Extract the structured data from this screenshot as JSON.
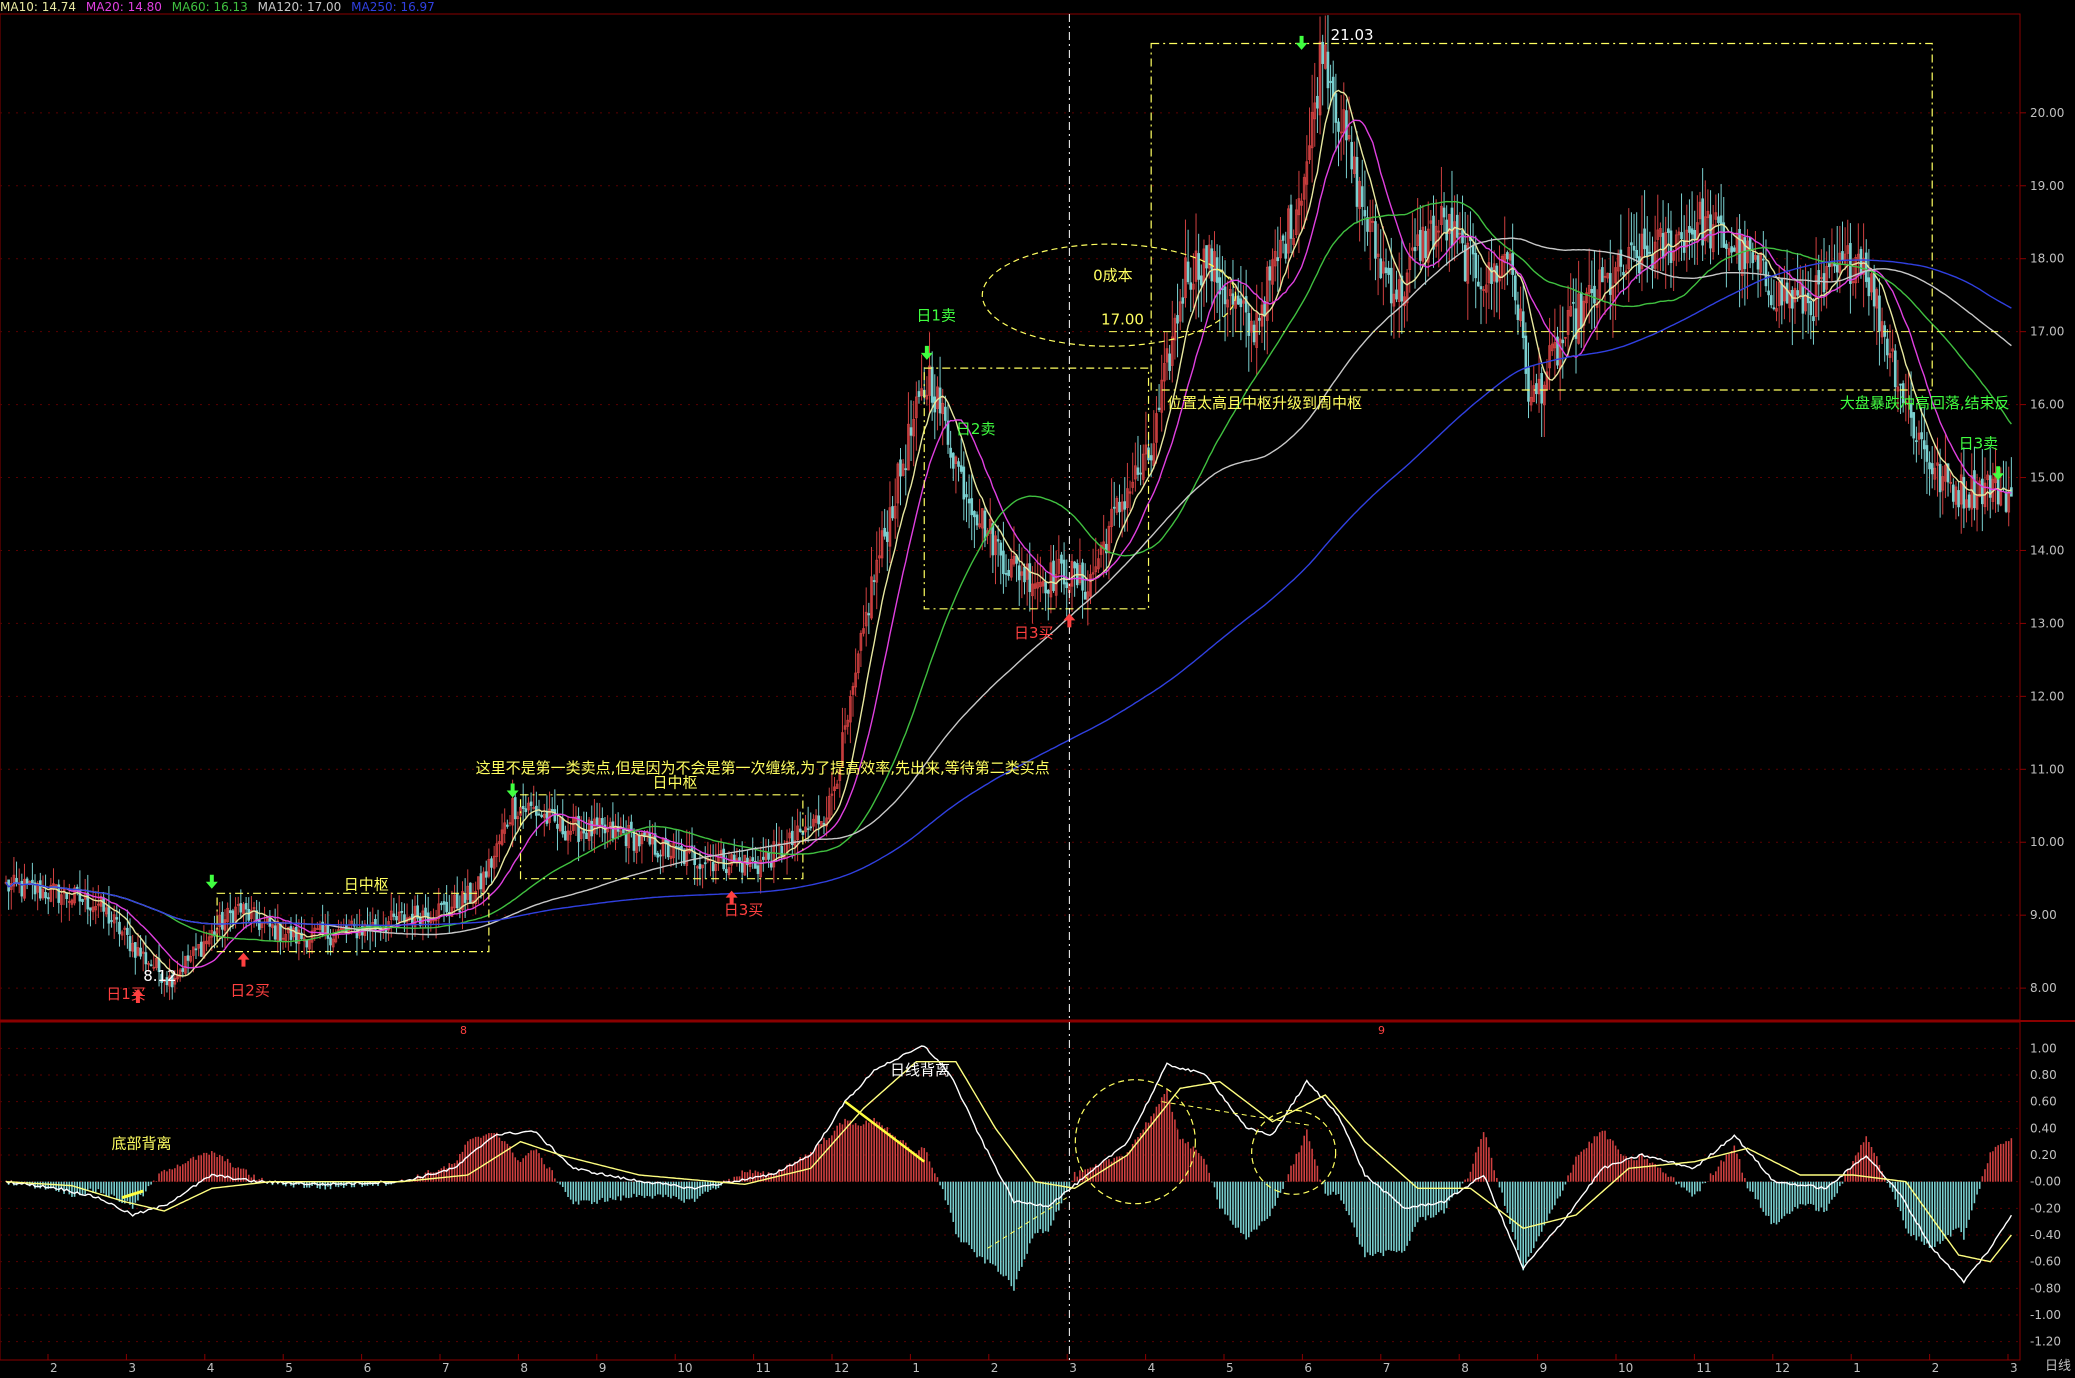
{
  "period_label": "日线",
  "colors": {
    "bg": "#000000",
    "frame": "#8a0000",
    "grid": "#5a0000",
    "axis_text": "#c0c0c0",
    "up": "#d04040",
    "down": "#7ad0d0",
    "ma5": "#ffffff",
    "ma10": "#e8e8a0",
    "ma20": "#e040e0",
    "ma60": "#40c040",
    "ma120": "#c8c8c8",
    "ma250": "#3040e0",
    "annotation_yellow": "#ffff60",
    "annotation_red": "#ff4040",
    "annotation_green": "#40ff40",
    "dif": "#ffffff",
    "dea": "#ffff80"
  },
  "ma_legend": [
    {
      "text": "MA10: 14.74",
      "color": "#e8e8a0"
    },
    {
      "text": "MA20: 14.80",
      "color": "#e040e0"
    },
    {
      "text": "MA60: 16.13",
      "color": "#40c040"
    },
    {
      "text": "MA120: 17.00",
      "color": "#c8c8c8"
    },
    {
      "text": "MA250: 16.97",
      "color": "#3040e0"
    }
  ],
  "chart_data": [
    {
      "type": "candlestick",
      "title": "",
      "ylim": [
        7.7,
        21.3
      ],
      "y_ticks": [
        8.0,
        9.0,
        10.0,
        11.0,
        12.0,
        13.0,
        14.0,
        15.0,
        16.0,
        17.0,
        18.0,
        19.0,
        20.0
      ],
      "x_month_labels": [
        "2",
        "3",
        "4",
        "5",
        "6",
        "7",
        "8",
        "9",
        "10",
        "11",
        "12",
        "1",
        "2",
        "3",
        "4",
        "5",
        "6",
        "7",
        "8",
        "9",
        "10",
        "11",
        "12",
        "1",
        "2",
        "3"
      ],
      "year_markers": [
        "8",
        "9"
      ],
      "price_path": [
        [
          0,
          9.4
        ],
        [
          20,
          9.3
        ],
        [
          35,
          9.15
        ],
        [
          50,
          8.5
        ],
        [
          62,
          8.12
        ],
        [
          72,
          8.5
        ],
        [
          82,
          8.9
        ],
        [
          88,
          9.1
        ],
        [
          98,
          8.85
        ],
        [
          110,
          8.7
        ],
        [
          125,
          8.75
        ],
        [
          140,
          8.85
        ],
        [
          155,
          9.0
        ],
        [
          168,
          9.1
        ],
        [
          178,
          9.3
        ],
        [
          185,
          9.8
        ],
        [
          192,
          10.5
        ],
        [
          200,
          10.45
        ],
        [
          210,
          10.2
        ],
        [
          225,
          10.15
        ],
        [
          235,
          10.1
        ],
        [
          245,
          9.95
        ],
        [
          258,
          9.8
        ],
        [
          270,
          9.75
        ],
        [
          285,
          9.7
        ],
        [
          298,
          10.0
        ],
        [
          305,
          10.2
        ],
        [
          312,
          10.5
        ],
        [
          320,
          11.8
        ],
        [
          328,
          13.5
        ],
        [
          335,
          14.5
        ],
        [
          342,
          15.5
        ],
        [
          350,
          16.4
        ],
        [
          356,
          15.7
        ],
        [
          362,
          15.0
        ],
        [
          370,
          14.4
        ],
        [
          380,
          13.8
        ],
        [
          392,
          13.6
        ],
        [
          402,
          13.7
        ],
        [
          410,
          13.5
        ],
        [
          418,
          14.3
        ],
        [
          426,
          14.9
        ],
        [
          434,
          15.3
        ],
        [
          440,
          16.5
        ],
        [
          447,
          17.8
        ],
        [
          455,
          18.0
        ],
        [
          463,
          17.5
        ],
        [
          472,
          17.0
        ],
        [
          480,
          17.8
        ],
        [
          488,
          18.6
        ],
        [
          494,
          19.5
        ],
        [
          499,
          21.03
        ],
        [
          505,
          20.0
        ],
        [
          512,
          19.0
        ],
        [
          520,
          18.0
        ],
        [
          528,
          17.5
        ],
        [
          536,
          18.2
        ],
        [
          545,
          18.5
        ],
        [
          553,
          18.0
        ],
        [
          562,
          17.7
        ],
        [
          570,
          18.1
        ],
        [
          578,
          16.0
        ],
        [
          586,
          16.6
        ],
        [
          595,
          17.2
        ],
        [
          605,
          17.6
        ],
        [
          618,
          18.0
        ],
        [
          630,
          18.2
        ],
        [
          642,
          18.5
        ],
        [
          650,
          18.3
        ],
        [
          660,
          18.0
        ],
        [
          672,
          17.5
        ],
        [
          684,
          17.4
        ],
        [
          694,
          17.8
        ],
        [
          703,
          18.1
        ],
        [
          712,
          17.0
        ],
        [
          722,
          15.8
        ],
        [
          732,
          15.0
        ],
        [
          742,
          14.8
        ],
        [
          752,
          14.9
        ],
        [
          760,
          14.74
        ]
      ],
      "big_moves": [
        [
          0.18,
          0.95
        ],
        [
          0.3,
          1.4
        ],
        [
          0.6,
          0.8
        ],
        [
          0.7,
          1.0
        ]
      ],
      "ma_lines": [
        {
          "name": "MA10",
          "color": "#e8e8a0",
          "lag": 5
        },
        {
          "name": "MA20",
          "color": "#e040e0",
          "lag": 10
        },
        {
          "name": "MA60",
          "color": "#40c040",
          "lag": 30
        },
        {
          "name": "MA120",
          "color": "#c8c8c8",
          "lag": 60
        },
        {
          "name": "MA250",
          "color": "#3040e0",
          "lag": 125
        }
      ],
      "annotations": [
        {
          "text": "日1买",
          "color": "#ff4040",
          "day": 38,
          "price": 7.85
        },
        {
          "text": "8.12",
          "color": "#ffffff",
          "day": 52,
          "price": 8.1
        },
        {
          "text": "日2买",
          "color": "#ff4040",
          "day": 85,
          "price": 7.9
        },
        {
          "text": "日中枢",
          "color": "#ffff60",
          "day": 128,
          "price": 9.35
        },
        {
          "text": "这里不是第一类卖点,但是因为不会是第一次缠绕,为了提高效率,先出来,等待第二类买点",
          "color": "#ffff60",
          "day": 178,
          "price": 10.95
        },
        {
          "text": "日中枢",
          "color": "#ffff60",
          "day": 245,
          "price": 10.75
        },
        {
          "text": "日3买",
          "color": "#ff4040",
          "day": 272,
          "price": 9.0
        },
        {
          "text": "日1卖",
          "color": "#40ff40",
          "day": 345,
          "price": 17.15
        },
        {
          "text": "日2卖",
          "color": "#40ff40",
          "day": 360,
          "price": 15.6
        },
        {
          "text": "日3买",
          "color": "#ff4040",
          "day": 382,
          "price": 12.8
        },
        {
          "text": "0成本",
          "color": "#ffff60",
          "day": 412,
          "price": 17.7
        },
        {
          "text": "17.00",
          "color": "#ffff60",
          "day": 415,
          "price": 17.1
        },
        {
          "text": "21.03",
          "color": "#ffffff",
          "day": 502,
          "price": 21.0
        },
        {
          "text": "位置太高且中枢升级到周中枢",
          "color": "#ffff60",
          "day": 440,
          "price": 15.95
        },
        {
          "text": "大盘暴跌冲高回落,结束反",
          "color": "#40ff40",
          "day": 695,
          "price": 15.95
        },
        {
          "text": "日3卖",
          "color": "#40ff40",
          "day": 740,
          "price": 15.4
        }
      ],
      "arrows": [
        {
          "kind": "up",
          "color": "#ff4040",
          "day": 50,
          "price": 7.85
        },
        {
          "kind": "up",
          "color": "#ff4040",
          "day": 90,
          "price": 8.35
        },
        {
          "kind": "down",
          "color": "#40ff40",
          "day": 78,
          "price": 9.5
        },
        {
          "kind": "down",
          "color": "#40ff40",
          "day": 192,
          "price": 10.75
        },
        {
          "kind": "up",
          "color": "#ff4040",
          "day": 275,
          "price": 9.2
        },
        {
          "kind": "down",
          "color": "#40ff40",
          "day": 349,
          "price": 16.75
        },
        {
          "kind": "up",
          "color": "#ff4040",
          "day": 403,
          "price": 13.0
        },
        {
          "kind": "down",
          "color": "#40ff40",
          "day": 491,
          "price": 21.0
        },
        {
          "kind": "down",
          "color": "#40ff40",
          "day": 755,
          "price": 15.1
        }
      ],
      "boxes": [
        {
          "d0": 80,
          "d1": 183,
          "p0": 8.5,
          "p1": 9.3
        },
        {
          "d0": 195,
          "d1": 302,
          "p0": 9.5,
          "p1": 10.65
        },
        {
          "d0": 348,
          "d1": 433,
          "p0": 13.2,
          "p1": 16.5
        },
        {
          "d0": 434,
          "d1": 730,
          "p0": 16.2,
          "p1": 20.95
        }
      ],
      "horizontal_dashed": [
        {
          "d0": 418,
          "d1": 755,
          "price": 17.0
        }
      ],
      "circle": {
        "day": 418,
        "price": 17.5,
        "r_days": 16,
        "r_price": 0.7
      },
      "vertical_dashed_day": 403
    },
    {
      "type": "macd",
      "ylim": [
        -1.3,
        1.1
      ],
      "y_ticks": [
        1.0,
        0.8,
        0.6,
        0.4,
        0.2,
        0.0,
        -0.2,
        -0.4,
        -0.6,
        -0.8,
        -1.0,
        -1.2
      ],
      "y_tick_labels": [
        "1.00",
        "0.80",
        "0.60",
        "0.40",
        "0.20",
        "-0.00",
        "-0.20",
        "-0.40",
        "-0.60",
        "-0.80",
        "-1.00",
        "-1.20"
      ],
      "dif_path": [
        [
          0,
          0.0
        ],
        [
          20,
          -0.05
        ],
        [
          35,
          -0.12
        ],
        [
          48,
          -0.25
        ],
        [
          60,
          -0.18
        ],
        [
          78,
          0.05
        ],
        [
          95,
          0.0
        ],
        [
          120,
          -0.02
        ],
        [
          150,
          0.0
        ],
        [
          170,
          0.1
        ],
        [
          185,
          0.35
        ],
        [
          200,
          0.38
        ],
        [
          215,
          0.1
        ],
        [
          235,
          0.02
        ],
        [
          260,
          -0.05
        ],
        [
          290,
          0.05
        ],
        [
          305,
          0.2
        ],
        [
          318,
          0.6
        ],
        [
          330,
          0.85
        ],
        [
          348,
          1.02
        ],
        [
          358,
          0.8
        ],
        [
          370,
          0.3
        ],
        [
          382,
          -0.15
        ],
        [
          395,
          -0.18
        ],
        [
          410,
          0.05
        ],
        [
          425,
          0.3
        ],
        [
          440,
          0.88
        ],
        [
          455,
          0.8
        ],
        [
          470,
          0.4
        ],
        [
          480,
          0.35
        ],
        [
          493,
          0.75
        ],
        [
          505,
          0.5
        ],
        [
          515,
          0.05
        ],
        [
          530,
          -0.2
        ],
        [
          545,
          -0.15
        ],
        [
          560,
          0.05
        ],
        [
          575,
          -0.65
        ],
        [
          590,
          -0.3
        ],
        [
          605,
          0.1
        ],
        [
          620,
          0.2
        ],
        [
          640,
          0.1
        ],
        [
          655,
          0.35
        ],
        [
          670,
          0.0
        ],
        [
          690,
          -0.05
        ],
        [
          705,
          0.2
        ],
        [
          718,
          -0.1
        ],
        [
          730,
          -0.5
        ],
        [
          742,
          -0.75
        ],
        [
          752,
          -0.5
        ],
        [
          760,
          -0.25
        ]
      ],
      "dea_path": [
        [
          0,
          0.0
        ],
        [
          25,
          -0.03
        ],
        [
          45,
          -0.15
        ],
        [
          60,
          -0.22
        ],
        [
          78,
          -0.05
        ],
        [
          100,
          0.0
        ],
        [
          150,
          0.0
        ],
        [
          175,
          0.05
        ],
        [
          195,
          0.3
        ],
        [
          210,
          0.2
        ],
        [
          240,
          0.05
        ],
        [
          280,
          -0.02
        ],
        [
          305,
          0.1
        ],
        [
          325,
          0.55
        ],
        [
          345,
          0.9
        ],
        [
          360,
          0.9
        ],
        [
          375,
          0.4
        ],
        [
          390,
          0.0
        ],
        [
          405,
          -0.05
        ],
        [
          425,
          0.2
        ],
        [
          445,
          0.7
        ],
        [
          460,
          0.75
        ],
        [
          480,
          0.45
        ],
        [
          500,
          0.65
        ],
        [
          515,
          0.3
        ],
        [
          535,
          -0.05
        ],
        [
          555,
          -0.05
        ],
        [
          575,
          -0.35
        ],
        [
          595,
          -0.25
        ],
        [
          615,
          0.1
        ],
        [
          640,
          0.15
        ],
        [
          660,
          0.25
        ],
        [
          680,
          0.05
        ],
        [
          700,
          0.05
        ],
        [
          720,
          0.0
        ],
        [
          740,
          -0.55
        ],
        [
          752,
          -0.6
        ],
        [
          760,
          -0.4
        ]
      ],
      "annotations": [
        {
          "text": "底部背离",
          "color": "#ffff60",
          "day": 40,
          "price": 0.25
        },
        {
          "text": "日线背离",
          "color": "#ffffff",
          "day": 335,
          "price": 0.8
        }
      ]
    }
  ]
}
